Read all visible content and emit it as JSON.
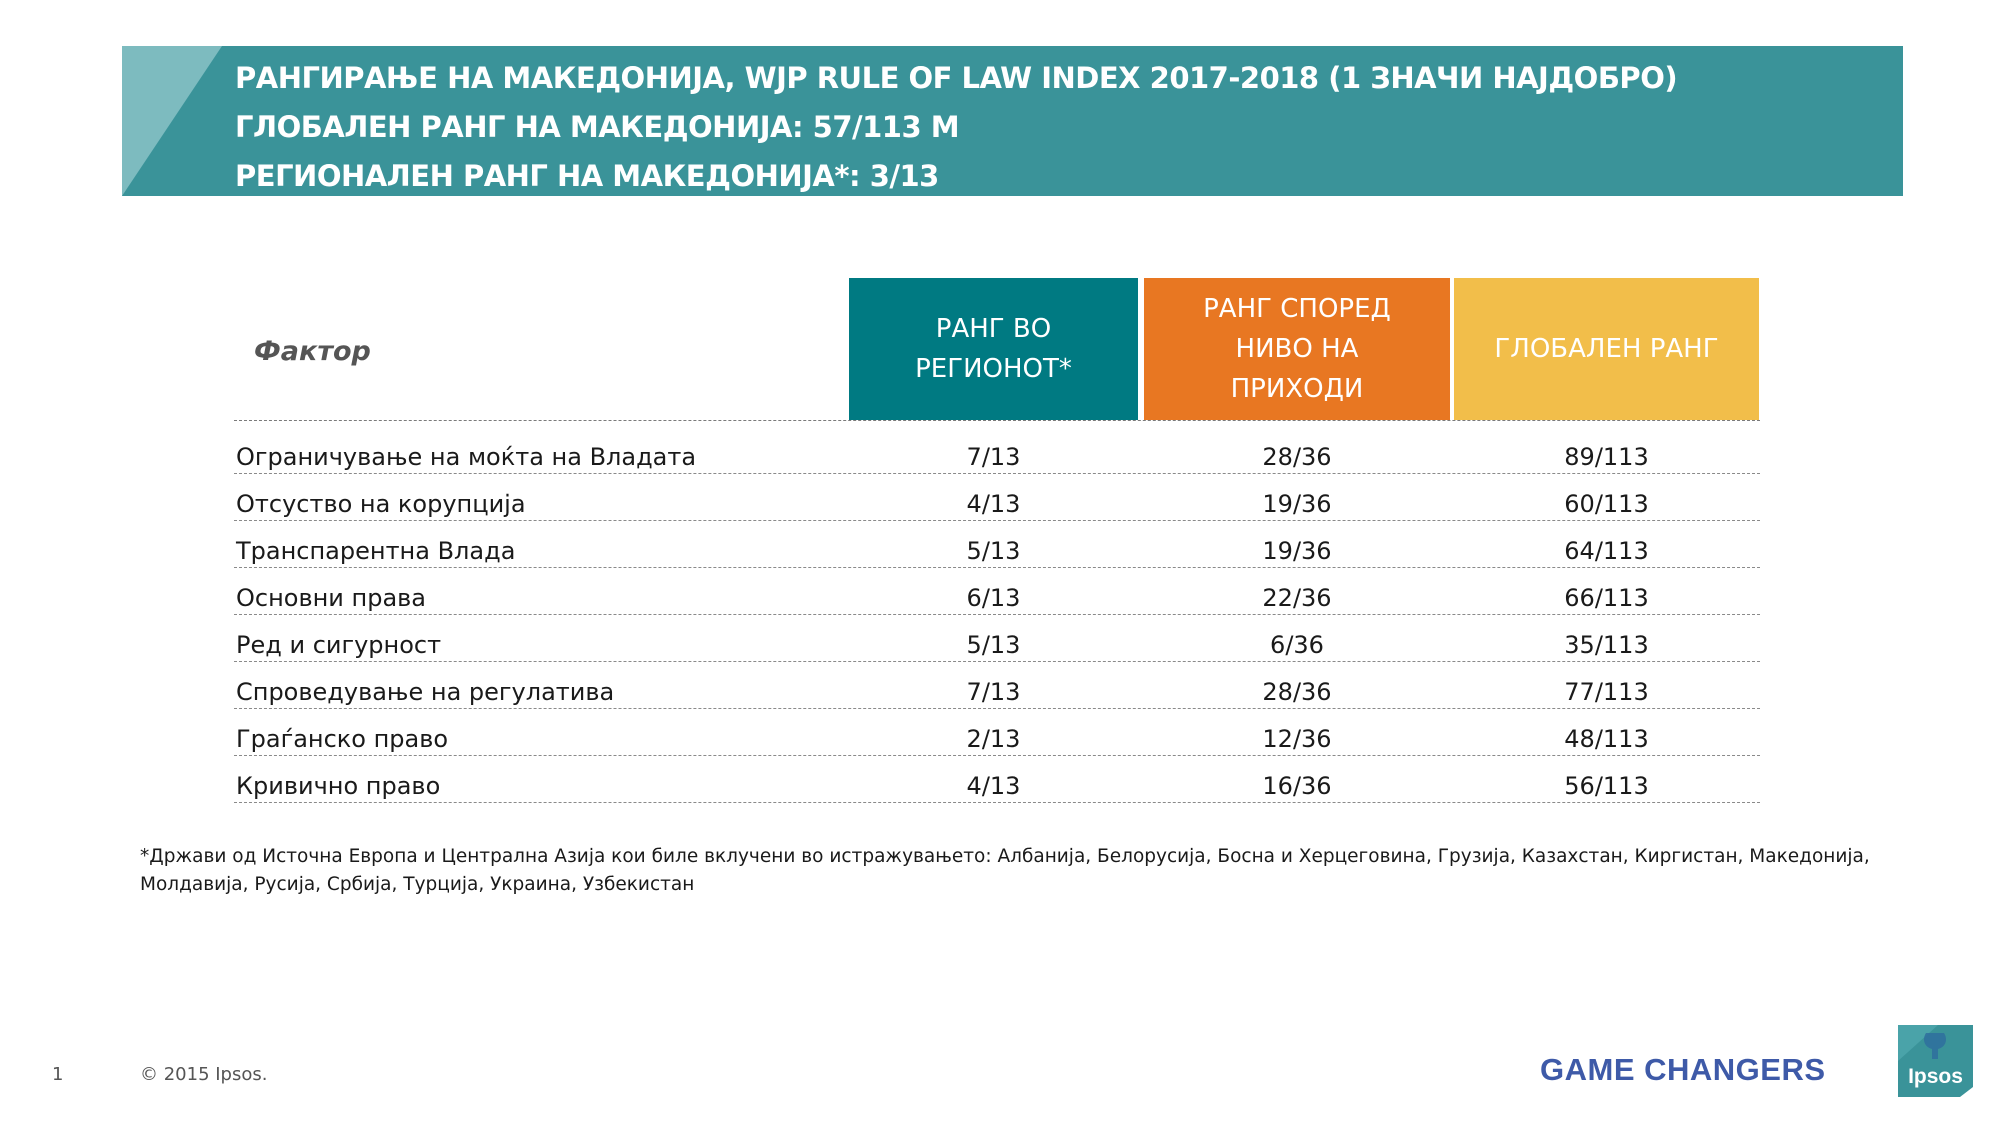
{
  "header": {
    "title_line1": "РАНГИРАЊЕ НА МАКЕДОНИЈА, WJP RULE OF LAW INDEX 2017-2018 (1 ЗНАЧИ НАЈДОБРО)",
    "title_line2": "ГЛОБАЛЕН РАНГ НА МАКЕДОНИЈА: 57/113 М",
    "title_line3": "РЕГИОНАЛЕН РАНГ НА МАКЕДОНИЈА*: 3/13",
    "color": "#3a9399"
  },
  "table": {
    "factor_header": "Фактор",
    "col_region_l1": "РАНГ ВО",
    "col_region_l2": "РЕГИОНОТ*",
    "col_income_l1": "РАНГ СПОРЕД",
    "col_income_l2": "НИВО НА",
    "col_income_l3": "ПРИХОДИ",
    "col_global": "ГЛОБАЛЕН РАНГ",
    "colors": {
      "region": "#007a82",
      "income": "#e87722",
      "global": "#f2be4a"
    },
    "rows": [
      {
        "factor": "Ограничување на моќта на Владата",
        "region": "7/13",
        "income": "28/36",
        "global": "89/113"
      },
      {
        "factor": "Отсуство на корупција",
        "region": "4/13",
        "income": "19/36",
        "global": "60/113"
      },
      {
        "factor": "Транспарентна Влада",
        "region": "5/13",
        "income": "19/36",
        "global": "64/113"
      },
      {
        "factor": "Основни права",
        "region": "6/13",
        "income": "22/36",
        "global": "66/113"
      },
      {
        "factor": "Ред и сигурност",
        "region": "5/13",
        "income": "6/36",
        "global": "35/113"
      },
      {
        "factor": "Спроведување на регулатива",
        "region": "7/13",
        "income": "28/36",
        "global": "77/113"
      },
      {
        "factor": "Граѓанско право",
        "region": "2/13",
        "income": "12/36",
        "global": "48/113"
      },
      {
        "factor": "Кривично право",
        "region": "4/13",
        "income": "16/36",
        "global": "56/113"
      }
    ]
  },
  "footnote": {
    "line1": "*Држави од Источна Европа и Централна Азија кои биле вклучени во истражувањето: Албанија, Белорусија, Босна и Херцеговина, Грузија, Казахстан, Киргистан, Македонија,",
    "line2": "Молдавија, Русија, Србија, Турција, Украина, Узбекистан"
  },
  "footer": {
    "page_number": "1",
    "copyright": "© 2015 Ipsos.",
    "tagline": "GAME CHANGERS",
    "logo_text": "Ipsos",
    "tagline_color": "#3e5aa8",
    "logo_color": "#3a9399"
  }
}
